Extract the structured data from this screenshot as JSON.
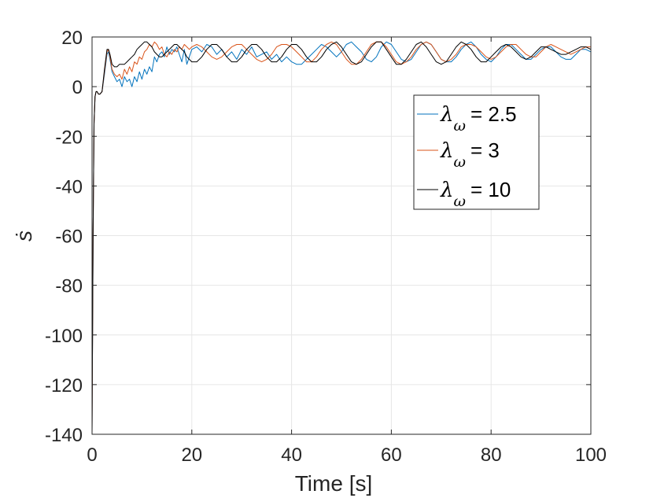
{
  "chart_data": {
    "type": "line",
    "xlabel": "Time [s]",
    "ylabel": "ṡ",
    "xlim": [
      0,
      100
    ],
    "ylim": [
      -140,
      20
    ],
    "x_ticks": [
      0,
      20,
      40,
      60,
      80,
      100
    ],
    "y_ticks": [
      20,
      0,
      -20,
      -40,
      -60,
      -80,
      -100,
      -120,
      -140
    ],
    "x_tick_labels": [
      "0",
      "20",
      "40",
      "60",
      "80",
      "100"
    ],
    "y_tick_labels": [
      "20",
      "0",
      "-20",
      "-40",
      "-60",
      "-80",
      "-100",
      "-120",
      "-140"
    ],
    "grid": true,
    "legend_position": "upper-right",
    "series": [
      {
        "name": "λω = 2.5",
        "legend_symbol": "λ",
        "legend_subscript": "ω",
        "legend_value": "= 2.5",
        "color": "#0072BD",
        "x": [
          0,
          0.2,
          0.4,
          0.6,
          0.8,
          1,
          1.3,
          1.6,
          2,
          2.5,
          3,
          3.3,
          3.6,
          4,
          4.5,
          5,
          5.5,
          6,
          6.5,
          7,
          7.5,
          8,
          8.5,
          9,
          9.5,
          10,
          10.5,
          11,
          11.5,
          12,
          12.5,
          13,
          13.5,
          14,
          14.5,
          15,
          15.5,
          16,
          16.5,
          17,
          17.5,
          18,
          18.5,
          19,
          19.5,
          20,
          21,
          22,
          23,
          24,
          25,
          26,
          27,
          28,
          29,
          30,
          31,
          32,
          33,
          34,
          35,
          36,
          37,
          38,
          39,
          40,
          41,
          42,
          43,
          44,
          45,
          46,
          47,
          48,
          49,
          50,
          51,
          52,
          53,
          54,
          55,
          56,
          57,
          58,
          59,
          60,
          61,
          62,
          63,
          64,
          65,
          66,
          67,
          68,
          69,
          70,
          71,
          72,
          73,
          74,
          75,
          76,
          77,
          78,
          79,
          80,
          81,
          82,
          83,
          84,
          85,
          86,
          87,
          88,
          89,
          90,
          91,
          92,
          93,
          94,
          95,
          96,
          97,
          98,
          99,
          100
        ],
        "y": [
          -140,
          -60,
          -15,
          -4,
          -2,
          -2,
          -3,
          -3,
          -2,
          5,
          13,
          14,
          11,
          6,
          4,
          2,
          3,
          0,
          4,
          2,
          3,
          0,
          4,
          2,
          6,
          3,
          7,
          5,
          8,
          6,
          12,
          10,
          13,
          14,
          12,
          16,
          13,
          15,
          14,
          16,
          13,
          10,
          15,
          9,
          12,
          15,
          16,
          14,
          17,
          16,
          13,
          15,
          12,
          14,
          11,
          15,
          13,
          16,
          12,
          13,
          14,
          11,
          13,
          10,
          12,
          10,
          9,
          9,
          11,
          13,
          15,
          17,
          16,
          14,
          12,
          14,
          17,
          18,
          16,
          14,
          11,
          10,
          12,
          16,
          18,
          17,
          14,
          11,
          10,
          11,
          14,
          17,
          18,
          17,
          14,
          11,
          10,
          10,
          12,
          15,
          17,
          18,
          16,
          13,
          11,
          10,
          12,
          15,
          17,
          17,
          15,
          13,
          11,
          11,
          13,
          15,
          16,
          16,
          14,
          12,
          11,
          11,
          13,
          15,
          15,
          14
        ]
      },
      {
        "name": "λω = 3",
        "legend_symbol": "λ",
        "legend_subscript": "ω",
        "legend_value": "= 3",
        "color": "#D95319",
        "x": [
          0,
          0.2,
          0.4,
          0.6,
          0.8,
          1,
          1.3,
          1.6,
          2,
          2.5,
          3,
          3.3,
          3.6,
          4,
          4.5,
          5,
          5.5,
          6,
          6.5,
          7,
          7.5,
          8,
          8.5,
          9,
          9.5,
          10,
          10.5,
          11,
          11.5,
          12,
          12.5,
          13,
          13.5,
          14,
          14.5,
          15,
          15.5,
          16,
          16.5,
          17,
          17.5,
          18,
          18.5,
          19,
          19.5,
          20,
          21,
          22,
          23,
          24,
          25,
          26,
          27,
          28,
          29,
          30,
          31,
          32,
          33,
          34,
          35,
          36,
          37,
          38,
          39,
          40,
          41,
          42,
          43,
          44,
          45,
          46,
          47,
          48,
          49,
          50,
          51,
          52,
          53,
          54,
          55,
          56,
          57,
          58,
          59,
          60,
          61,
          62,
          63,
          64,
          65,
          66,
          67,
          68,
          69,
          70,
          71,
          72,
          73,
          74,
          75,
          76,
          77,
          78,
          79,
          80,
          81,
          82,
          83,
          84,
          85,
          86,
          87,
          88,
          89,
          90,
          91,
          92,
          93,
          94,
          95,
          96,
          97,
          98,
          99,
          100
        ],
        "y": [
          -140,
          -60,
          -15,
          -4,
          -2,
          -2,
          -3,
          -3,
          -2,
          6,
          14,
          15,
          12,
          7,
          5,
          4,
          5,
          3,
          7,
          5,
          8,
          6,
          10,
          9,
          12,
          11,
          14,
          15,
          17,
          16,
          18,
          17,
          15,
          16,
          13,
          12,
          14,
          13,
          15,
          14,
          16,
          15,
          17,
          16,
          15,
          16,
          17,
          16,
          14,
          12,
          11,
          12,
          14,
          16,
          17,
          17,
          15,
          13,
          11,
          10,
          11,
          13,
          16,
          17,
          17,
          16,
          14,
          12,
          10,
          10,
          12,
          15,
          17,
          18,
          17,
          14,
          11,
          9,
          9,
          11,
          14,
          17,
          18,
          18,
          16,
          13,
          10,
          9,
          10,
          12,
          15,
          17,
          18,
          17,
          14,
          11,
          10,
          11,
          13,
          16,
          17,
          17,
          16,
          14,
          12,
          11,
          12,
          14,
          16,
          17,
          17,
          15,
          13,
          12,
          12,
          14,
          16,
          17,
          16,
          15,
          14,
          13,
          14,
          15,
          16,
          16
        ]
      },
      {
        "name": "λω = 10",
        "legend_symbol": "λ",
        "legend_subscript": "ω",
        "legend_value": "= 10",
        "color": "#000000",
        "x": [
          0,
          0.2,
          0.4,
          0.6,
          0.8,
          1,
          1.3,
          1.6,
          2,
          2.5,
          3,
          3.3,
          3.6,
          4,
          4.5,
          5,
          5.5,
          6,
          6.5,
          7,
          7.5,
          8,
          8.5,
          9,
          9.5,
          10,
          10.5,
          11,
          11.5,
          12,
          12.5,
          13,
          13.5,
          14,
          14.5,
          15,
          15.5,
          16,
          16.5,
          17,
          17.5,
          18,
          18.5,
          19,
          19.5,
          20,
          21,
          22,
          23,
          24,
          25,
          26,
          27,
          28,
          29,
          30,
          31,
          32,
          33,
          34,
          35,
          36,
          37,
          38,
          39,
          40,
          41,
          42,
          43,
          44,
          45,
          46,
          47,
          48,
          49,
          50,
          51,
          52,
          53,
          54,
          55,
          56,
          57,
          58,
          59,
          60,
          61,
          62,
          63,
          64,
          65,
          66,
          67,
          68,
          69,
          70,
          71,
          72,
          73,
          74,
          75,
          76,
          77,
          78,
          79,
          80,
          81,
          82,
          83,
          84,
          85,
          86,
          87,
          88,
          89,
          90,
          91,
          92,
          93,
          94,
          95,
          96,
          97,
          98,
          99,
          100
        ],
        "y": [
          -140,
          -60,
          -15,
          -4,
          -2,
          -2,
          -3,
          -3,
          -2,
          7,
          15,
          15,
          13,
          9,
          8,
          8,
          9,
          9,
          9,
          10,
          11,
          12,
          13,
          15,
          16,
          17,
          18,
          18,
          17,
          16,
          14,
          13,
          12,
          12,
          13,
          14,
          15,
          16,
          17,
          17,
          16,
          15,
          14,
          12,
          11,
          10,
          10,
          12,
          15,
          17,
          17,
          15,
          12,
          10,
          10,
          12,
          15,
          17,
          17,
          15,
          12,
          10,
          10,
          12,
          15,
          17,
          17,
          15,
          12,
          10,
          10,
          12,
          15,
          17,
          18,
          16,
          13,
          10,
          9,
          10,
          13,
          16,
          18,
          18,
          15,
          12,
          9,
          9,
          11,
          14,
          17,
          18,
          16,
          13,
          10,
          9,
          10,
          13,
          16,
          18,
          17,
          15,
          12,
          10,
          10,
          12,
          14,
          16,
          17,
          16,
          14,
          12,
          11,
          12,
          14,
          16,
          16,
          15,
          14,
          13,
          13,
          14,
          15,
          16,
          16,
          15
        ]
      }
    ]
  }
}
